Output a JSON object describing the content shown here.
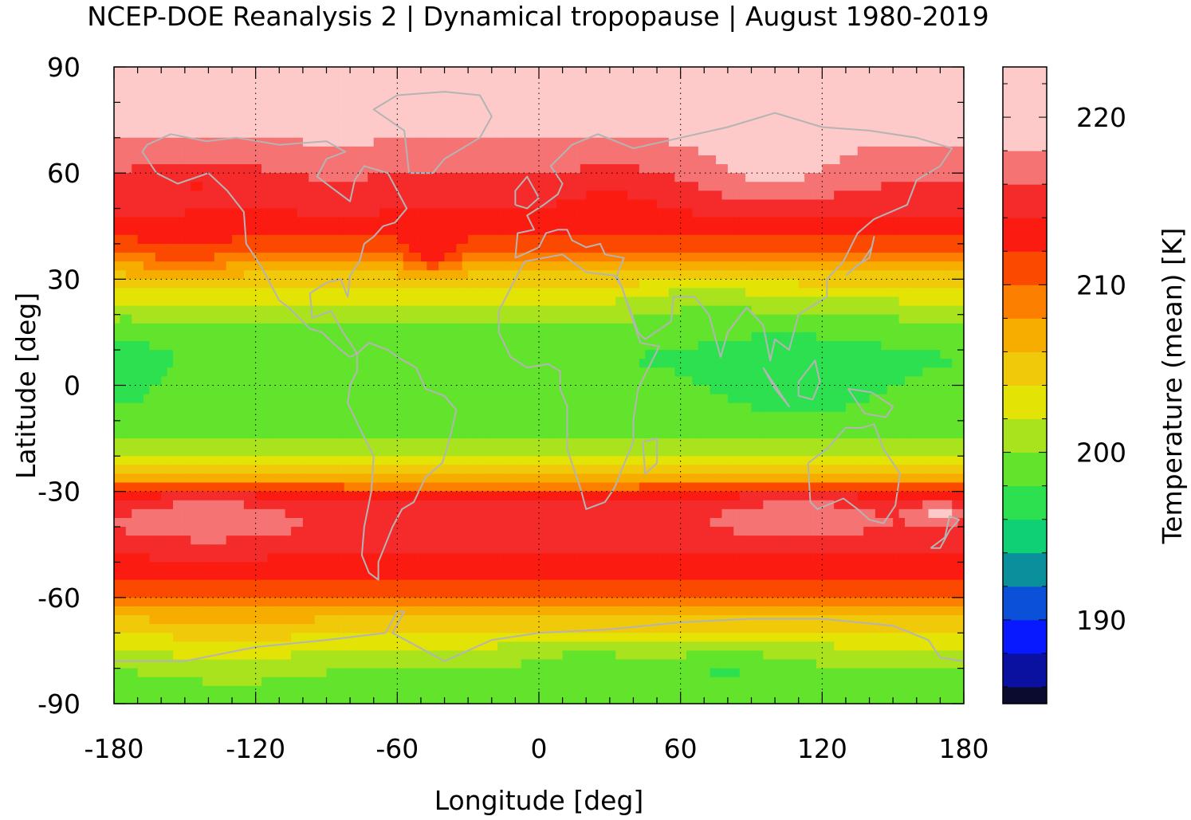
{
  "chart_data": {
    "type": "heatmap",
    "title": "NCEP-DOE Reanalysis 2 | Dynamical tropopause | August 1980-2019",
    "xlabel": "Longitude [deg]",
    "ylabel": "Latitude [deg]",
    "xlim": [
      -180,
      180
    ],
    "ylim": [
      -90,
      90
    ],
    "xticks": [
      -180,
      -120,
      -60,
      0,
      60,
      120,
      180
    ],
    "yticks": [
      90,
      60,
      30,
      0,
      -30,
      -60,
      -90
    ],
    "grid": true,
    "coastlines": true,
    "coastline_color": "#b4b4b4",
    "colorbar": {
      "label": "Temperature (mean) [K]",
      "range": [
        185,
        223
      ],
      "ticks": [
        190,
        200,
        210,
        220
      ],
      "levels": [
        {
          "from": 185,
          "to": 186,
          "color": "#0b0b30"
        },
        {
          "from": 186,
          "to": 188,
          "color": "#0a10a0"
        },
        {
          "from": 188,
          "to": 190,
          "color": "#0818ff"
        },
        {
          "from": 190,
          "to": 192,
          "color": "#0a50d8"
        },
        {
          "from": 192,
          "to": 194,
          "color": "#0a8f9d"
        },
        {
          "from": 194,
          "to": 196,
          "color": "#0fd075"
        },
        {
          "from": 196,
          "to": 198,
          "color": "#2ce050"
        },
        {
          "from": 198,
          "to": 200,
          "color": "#62e32c"
        },
        {
          "from": 200,
          "to": 202,
          "color": "#a8e31e"
        },
        {
          "from": 202,
          "to": 204,
          "color": "#e3e306"
        },
        {
          "from": 204,
          "to": 206,
          "color": "#f0c90a"
        },
        {
          "from": 206,
          "to": 208,
          "color": "#f7ad00"
        },
        {
          "from": 208,
          "to": 210,
          "color": "#fd7f00"
        },
        {
          "from": 210,
          "to": 212,
          "color": "#fb4a00"
        },
        {
          "from": 212,
          "to": 214,
          "color": "#fb1b11"
        },
        {
          "from": 214,
          "to": 216,
          "color": "#f52a2a"
        },
        {
          "from": 216,
          "to": 218,
          "color": "#f57373"
        },
        {
          "from": 218,
          "to": 223,
          "color": "#fdc9c9"
        }
      ]
    },
    "zonal_profile": [
      {
        "lat": 90,
        "value": 219
      },
      {
        "lat": 75,
        "value": 219
      },
      {
        "lat": 62,
        "value": 217
      },
      {
        "lat": 52,
        "value": 215
      },
      {
        "lat": 45,
        "value": 213
      },
      {
        "lat": 38,
        "value": 210
      },
      {
        "lat": 32,
        "value": 206
      },
      {
        "lat": 26,
        "value": 203
      },
      {
        "lat": 18,
        "value": 200
      },
      {
        "lat": 8,
        "value": 198
      },
      {
        "lat": 0,
        "value": 198.5
      },
      {
        "lat": -10,
        "value": 199
      },
      {
        "lat": -18,
        "value": 201
      },
      {
        "lat": -24,
        "value": 205
      },
      {
        "lat": -28,
        "value": 209
      },
      {
        "lat": -32,
        "value": 214
      },
      {
        "lat": -40,
        "value": 215
      },
      {
        "lat": -48,
        "value": 214
      },
      {
        "lat": -56,
        "value": 212
      },
      {
        "lat": -62,
        "value": 208
      },
      {
        "lat": -68,
        "value": 205
      },
      {
        "lat": -74,
        "value": 202
      },
      {
        "lat": -80,
        "value": 200
      },
      {
        "lat": -90,
        "value": 199
      }
    ],
    "anomalies": [
      {
        "lon": -145,
        "lat": 58,
        "rlon": 35,
        "rlat": 7,
        "delta": -2
      },
      {
        "lon": -150,
        "lat": 37,
        "rlon": 25,
        "rlat": 9,
        "delta": 1.5
      },
      {
        "lon": -45,
        "lat": 37,
        "rlon": 12,
        "rlat": 6,
        "delta": 4
      },
      {
        "lon": -40,
        "lat": 58,
        "rlon": 30,
        "rlat": 7,
        "delta": -1
      },
      {
        "lon": 30,
        "lat": 55,
        "rlon": 30,
        "rlat": 10,
        "delta": -1.5
      },
      {
        "lon": 100,
        "lat": 60,
        "rlon": 28,
        "rlat": 12,
        "delta": 2
      },
      {
        "lon": 110,
        "lat": 5,
        "rlon": 40,
        "rlat": 18,
        "delta": -1.5
      },
      {
        "lon": 70,
        "lat": 25,
        "rlon": 25,
        "rlat": 10,
        "delta": -1.5
      },
      {
        "lon": -175,
        "lat": 5,
        "rlon": 12,
        "rlat": 10,
        "delta": -2
      },
      {
        "lon": -140,
        "lat": -38,
        "rlon": 40,
        "rlat": 7,
        "delta": 3
      },
      {
        "lon": 110,
        "lat": -37,
        "rlon": 45,
        "rlat": 7,
        "delta": 2.5
      },
      {
        "lon": 170,
        "lat": -36,
        "rlon": 12,
        "rlat": 3,
        "delta": 3.5
      },
      {
        "lon": 20,
        "lat": -78,
        "rlon": 25,
        "rlat": 8,
        "delta": -1.5
      },
      {
        "lon": 80,
        "lat": -80,
        "rlon": 30,
        "rlat": 8,
        "delta": -2
      },
      {
        "lon": -130,
        "lat": -75,
        "rlon": 30,
        "rlat": 8,
        "delta": 1.5
      }
    ]
  }
}
